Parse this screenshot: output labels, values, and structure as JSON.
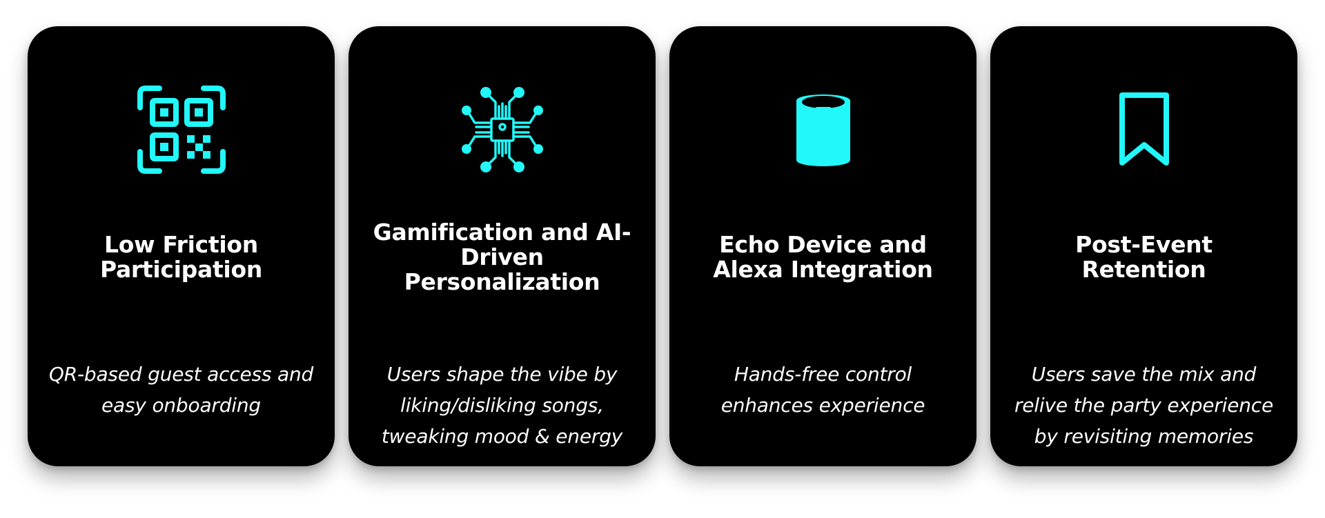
{
  "accent_color": "#22F7FA",
  "card_background": "#000000",
  "cards": [
    {
      "icon": "qr-code-icon",
      "title": "Low Friction Participation",
      "description": "QR-based guest access and easy onboarding"
    },
    {
      "icon": "ai-chip-icon",
      "title": "Gamification and AI-Driven Personalization",
      "description": "Users shape the vibe by liking/disliking songs, tweaking mood & energy"
    },
    {
      "icon": "echo-device-icon",
      "title": "Echo Device and Alexa Integration",
      "description": "Hands-free control enhances experience"
    },
    {
      "icon": "bookmark-icon",
      "title": "Post-Event Retention",
      "description": "Users save the mix and relive the party experience by revisiting memories"
    }
  ]
}
